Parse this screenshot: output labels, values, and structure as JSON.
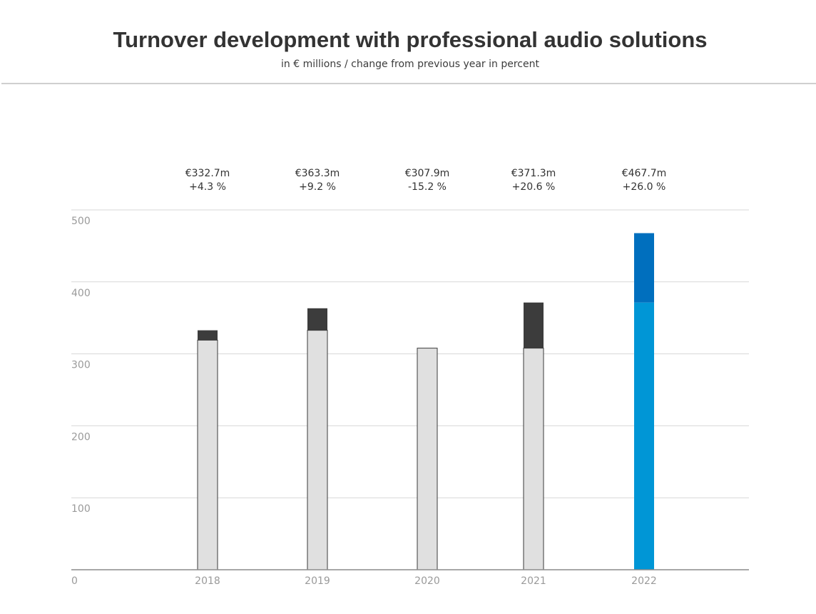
{
  "chart_data": {
    "type": "bar",
    "title": "Turnover development with professional audio solutions",
    "subtitle": "in € millions / change from previous year in percent",
    "categories": [
      "2018",
      "2019",
      "2020",
      "2021",
      "2022"
    ],
    "values": [
      332.7,
      363.3,
      307.9,
      371.3,
      467.7
    ],
    "previous_year_values": [
      319,
      332.7,
      307.9,
      307.9,
      371.3
    ],
    "value_labels": [
      "€332.7m",
      "€363.3m",
      "€307.9m",
      "€371.3m",
      "€467.7m"
    ],
    "change_labels": [
      "+4.3 %",
      "+9.2 %",
      "-15.2 %",
      "+20.6 %",
      "+26.0 %"
    ],
    "ylim": [
      0,
      500
    ],
    "yticks": [
      "0",
      "100",
      "200",
      "300",
      "400",
      "500"
    ],
    "ytick_values": [
      0,
      100,
      200,
      300,
      400,
      500
    ],
    "xlabel": "",
    "ylabel": "",
    "grid": true,
    "legend": "none",
    "colors": {
      "base": "#e0e0e0",
      "increase": "#3c3c3c",
      "highlight_base": "#0096d6",
      "highlight_increase": "#006fbe",
      "grid": "#d7d7d7",
      "axis": "#8c8c8c",
      "bar_outline": "#3a3a3a"
    },
    "highlight_index": 4
  }
}
